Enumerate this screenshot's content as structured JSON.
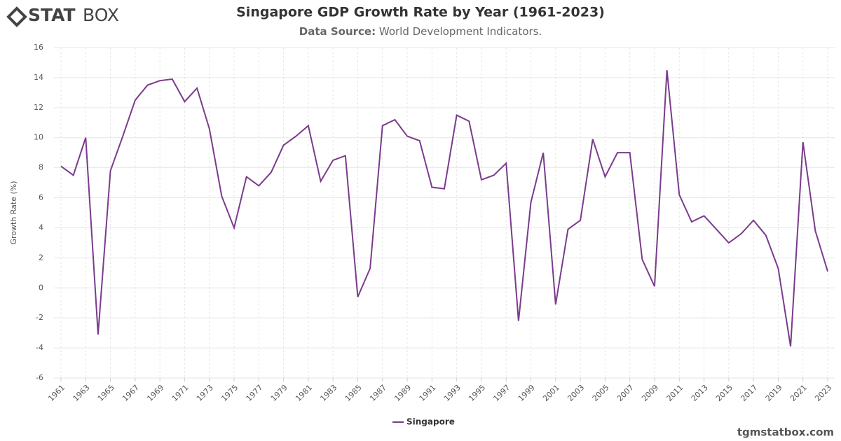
{
  "brand": {
    "bold": "STAT",
    "light": "BOX"
  },
  "footer": "tgmstatbox.com",
  "chart_data": {
    "type": "line",
    "title": "Singapore GDP Growth Rate by Year (1961-2023)",
    "subtitle_label": "Data Source:",
    "subtitle": "World Development Indicators.",
    "y_label": "Growth Rate (%)",
    "x": [
      1961,
      1962,
      1963,
      1964,
      1965,
      1966,
      1967,
      1968,
      1969,
      1970,
      1971,
      1972,
      1973,
      1974,
      1975,
      1976,
      1977,
      1978,
      1979,
      1980,
      1981,
      1982,
      1983,
      1984,
      1985,
      1986,
      1987,
      1988,
      1989,
      1990,
      1991,
      1992,
      1993,
      1994,
      1995,
      1996,
      1997,
      1998,
      1999,
      2000,
      2001,
      2002,
      2003,
      2004,
      2005,
      2006,
      2007,
      2008,
      2009,
      2010,
      2011,
      2012,
      2013,
      2014,
      2015,
      2016,
      2017,
      2018,
      2019,
      2020,
      2021,
      2022,
      2023
    ],
    "series": [
      {
        "name": "Singapore",
        "color": "#7a3b8c",
        "values": [
          8.1,
          7.5,
          10.0,
          -3.1,
          7.8,
          10.1,
          12.5,
          13.5,
          13.8,
          13.9,
          12.4,
          13.3,
          10.6,
          6.1,
          4.0,
          7.4,
          6.8,
          7.7,
          9.5,
          10.1,
          10.8,
          7.1,
          8.5,
          8.8,
          -0.6,
          1.3,
          10.8,
          11.2,
          10.1,
          9.8,
          6.7,
          6.6,
          11.5,
          11.1,
          7.2,
          7.5,
          8.3,
          -2.2,
          5.7,
          9.0,
          -1.1,
          3.9,
          4.5,
          9.9,
          7.4,
          9.0,
          9.0,
          1.9,
          0.1,
          14.5,
          6.2,
          4.4,
          4.8,
          3.9,
          3.0,
          3.6,
          4.5,
          3.5,
          1.3,
          -3.9,
          9.7,
          3.8,
          1.1
        ]
      }
    ],
    "xlim": [
      1961,
      2023
    ],
    "xticks": [
      1961,
      1963,
      1965,
      1967,
      1969,
      1971,
      1973,
      1975,
      1977,
      1979,
      1981,
      1983,
      1985,
      1987,
      1989,
      1991,
      1993,
      1995,
      1997,
      1999,
      2001,
      2003,
      2005,
      2007,
      2009,
      2011,
      2013,
      2015,
      2017,
      2019,
      2021,
      2023
    ],
    "ylim": [
      -6,
      16
    ],
    "yticks": [
      -6,
      -4,
      -2,
      0,
      2,
      4,
      6,
      8,
      10,
      12,
      14,
      16
    ],
    "grid": true,
    "legend": "bottom"
  }
}
